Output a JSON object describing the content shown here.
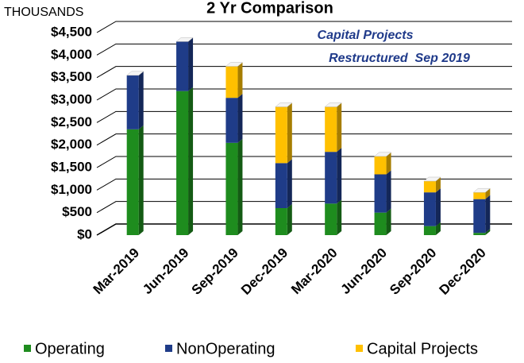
{
  "chart_data": {
    "type": "bar",
    "stacked": true,
    "three_d": true,
    "title": "2 Yr Comparison",
    "y_axis_unit": "THOUSANDS",
    "annotations": [
      "Capital Projects",
      "Restructured  Sep 2019"
    ],
    "categories": [
      "Mar-2019",
      "Jun-2019",
      "Sep-2019",
      "Dec-2019",
      "Mar-2020",
      "Jun-2020",
      "Sep-2020",
      "Dec-2020"
    ],
    "series": [
      {
        "name": "Operating",
        "color": "#1e8c1e",
        "values": [
          2350,
          3200,
          2050,
          600,
          700,
          500,
          200,
          50
        ]
      },
      {
        "name": "NonOperating",
        "color": "#1f3c88",
        "values": [
          1200,
          1100,
          1000,
          1000,
          1150,
          850,
          750,
          750
        ]
      },
      {
        "name": "Capital Projects",
        "color": "#ffc000",
        "values": [
          0,
          0,
          700,
          1250,
          1000,
          400,
          250,
          150
        ]
      }
    ],
    "ylim": [
      0,
      4500
    ],
    "yticks": [
      {
        "value": 0,
        "label": "$0"
      },
      {
        "value": 500,
        "label": "$500"
      },
      {
        "value": 1000,
        "label": "$1,000"
      },
      {
        "value": 1500,
        "label": "$1,500"
      },
      {
        "value": 2000,
        "label": "$2,000"
      },
      {
        "value": 2500,
        "label": "$2,500"
      },
      {
        "value": 3000,
        "label": "$3,000"
      },
      {
        "value": 3500,
        "label": "$3,500"
      },
      {
        "value": 4000,
        "label": "$4,000"
      },
      {
        "value": 4500,
        "label": "$4,500"
      }
    ],
    "grid": true,
    "legend": "bottom"
  }
}
